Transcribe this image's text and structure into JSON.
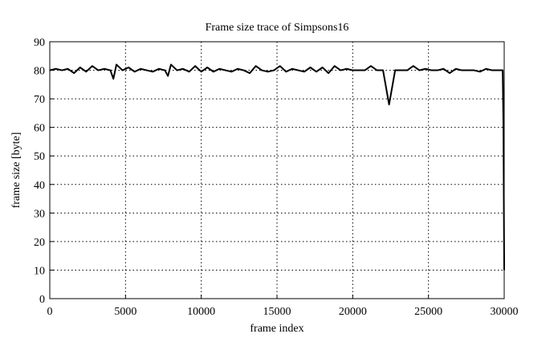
{
  "chart_data": {
    "type": "line",
    "title": "Frame size trace of Simpsons16",
    "x_label": "frame index",
    "y_label": "frame size [byte]",
    "x": [
      0,
      400,
      800,
      1200,
      1600,
      2000,
      2400,
      2800,
      3200,
      3600,
      4000,
      4200,
      4400,
      4800,
      5200,
      5600,
      6000,
      6400,
      6800,
      7200,
      7600,
      7800,
      8000,
      8400,
      8800,
      9200,
      9600,
      10000,
      10400,
      10800,
      11200,
      11600,
      12000,
      12400,
      12800,
      13200,
      13600,
      14000,
      14400,
      14800,
      15200,
      15600,
      16000,
      16400,
      16800,
      17200,
      17600,
      18000,
      18400,
      18800,
      19200,
      19600,
      20000,
      20400,
      20800,
      21200,
      21600,
      22000,
      22400,
      22800,
      23200,
      23600,
      24000,
      24400,
      24800,
      25200,
      25600,
      26000,
      26400,
      26800,
      27200,
      27600,
      28000,
      28400,
      28800,
      29200,
      29600,
      29900,
      29950,
      30000
    ],
    "series": [
      {
        "color": "#000000",
        "values": [
          80,
          80.5,
          80,
          80.5,
          79,
          81,
          79.5,
          81.5,
          80,
          80.5,
          80,
          77,
          82,
          80,
          81,
          79.5,
          80.5,
          80,
          79.5,
          80.5,
          80,
          78,
          82,
          80,
          80.5,
          79.5,
          81.5,
          79.5,
          81,
          79.5,
          80.5,
          80,
          79.5,
          80.5,
          80,
          79,
          81.5,
          80,
          79.5,
          80,
          81.5,
          79.5,
          80.5,
          80,
          79.5,
          81,
          79.5,
          81,
          79,
          81.5,
          80,
          80.5,
          80,
          80,
          80,
          81.5,
          80,
          80,
          68,
          80,
          80,
          80,
          81.5,
          80,
          80.5,
          80,
          80,
          80.5,
          79,
          80.5,
          80,
          80,
          80,
          79.5,
          80.5,
          80,
          80,
          80,
          60,
          10
        ]
      }
    ],
    "xlim": [
      0,
      30000
    ],
    "ylim": [
      0,
      90
    ],
    "xticks": [
      0,
      5000,
      10000,
      15000,
      20000,
      25000,
      30000
    ],
    "yticks": [
      0,
      10,
      20,
      30,
      40,
      50,
      60,
      70,
      80,
      90
    ],
    "grid": true
  }
}
